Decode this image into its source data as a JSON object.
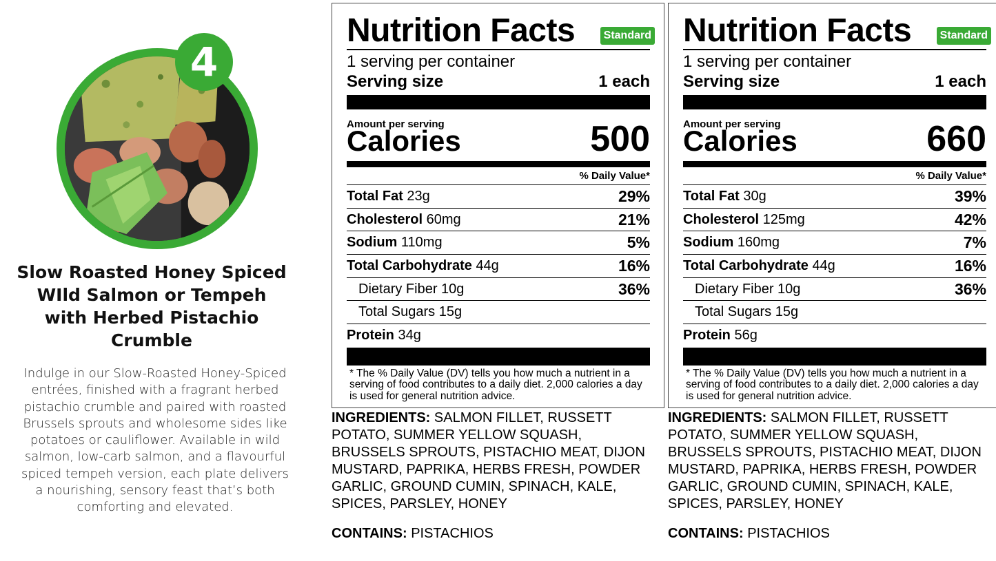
{
  "badge_number": "4",
  "title": "Slow Roasted Honey Spiced WIld Salmon or Tempeh with Herbed Pistachio Crumble",
  "description": "Indulge in our Slow-Roasted Honey-Spiced entrées, finished with a fragrant herbed pistachio crumble and paired with roasted Brussels sprouts and wholesome sides like potatoes or cauliflower. Available in wild salmon, low-carb salmon, and a flavourful spiced tempeh version, each plate delivers a nourishing, sensory feast that’s both comforting and elevated.",
  "colors": {
    "accent": "#3aaa35",
    "text": "#000000"
  },
  "labels": [
    {
      "heading": "Nutrition Facts",
      "badge": "Standard",
      "servings": "1 serving per container",
      "serving_size_label": "Serving size",
      "serving_size_value": "1 each",
      "amount_per_serving": "Amount per serving",
      "calories_label": "Calories",
      "calories_value": "500",
      "dv_header": "% Daily Value*",
      "rows": {
        "fat": {
          "name": "Total Fat",
          "amount": "23g",
          "dv": "29%"
        },
        "chol": {
          "name": "Cholesterol",
          "amount": "60mg",
          "dv": "21%"
        },
        "sodium": {
          "name": "Sodium",
          "amount": "110mg",
          "dv": "5%"
        },
        "carb": {
          "name": "Total Carbohydrate",
          "amount": "44g",
          "dv": "16%"
        },
        "fiber": {
          "name": "Dietary Fiber 10g",
          "dv": "36%"
        },
        "sugars": {
          "name": "Total Sugars 15g"
        },
        "protein": {
          "name": "Protein",
          "amount": "34g"
        }
      },
      "footnote": "* The % Daily Value (DV) tells you how much a nutrient in a serving of food contributes to a daily diet. 2,000 calories a day is used for general nutrition advice.",
      "ingredients_label": "INGREDIENTS:",
      "ingredients": "SALMON FILLET, RUSSETT POTATO, SUMMER YELLOW SQUASH, BRUSSELS SPROUTS, PISTACHIO MEAT, DIJON MUSTARD, PAPRIKA, HERBS FRESH, POWDER GARLIC, GROUND CUMIN, SPINACH, KALE, SPICES, PARSLEY, HONEY",
      "contains_label": "CONTAINS:",
      "contains": "PISTACHIOS"
    },
    {
      "heading": "Nutrition Facts",
      "badge": "Standard",
      "servings": "1 serving per container",
      "serving_size_label": "Serving size",
      "serving_size_value": "1 each",
      "amount_per_serving": "Amount per serving",
      "calories_label": "Calories",
      "calories_value": "660",
      "dv_header": "% Daily Value*",
      "rows": {
        "fat": {
          "name": "Total Fat",
          "amount": "30g",
          "dv": "39%"
        },
        "chol": {
          "name": "Cholesterol",
          "amount": "125mg",
          "dv": "42%"
        },
        "sodium": {
          "name": "Sodium",
          "amount": "160mg",
          "dv": "7%"
        },
        "carb": {
          "name": "Total Carbohydrate",
          "amount": "44g",
          "dv": "16%"
        },
        "fiber": {
          "name": "Dietary Fiber 10g",
          "dv": "36%"
        },
        "sugars": {
          "name": "Total Sugars 15g"
        },
        "protein": {
          "name": "Protein",
          "amount": "56g"
        }
      },
      "footnote": "* The % Daily Value (DV) tells you how much a nutrient in a serving of food contributes to a daily diet. 2,000 calories a day is used for general nutrition advice.",
      "ingredients_label": "INGREDIENTS:",
      "ingredients": "SALMON FILLET, RUSSETT POTATO, SUMMER YELLOW SQUASH, BRUSSELS SPROUTS, PISTACHIO MEAT, DIJON MUSTARD, PAPRIKA, HERBS FRESH, POWDER GARLIC, GROUND CUMIN, SPINACH, KALE, SPICES, PARSLEY, HONEY",
      "contains_label": "CONTAINS:",
      "contains": "PISTACHIOS"
    }
  ]
}
